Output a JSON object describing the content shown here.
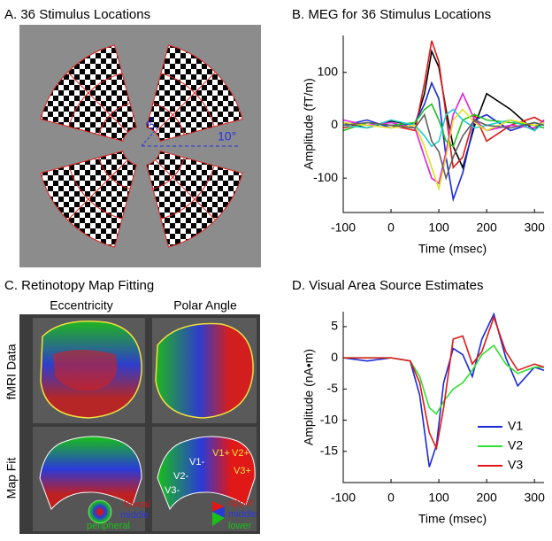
{
  "panel_a": {
    "title": "A. 36 Stimulus Locations",
    "labels": [
      "3°",
      "10°"
    ]
  },
  "panel_c": {
    "title": "C. Retinotopy Map Fitting",
    "columns": [
      "Eccentricity",
      "Polar Angle"
    ],
    "rows": [
      "fMRI Data",
      "Map Fit"
    ],
    "area_labels": [
      "V1-",
      "V2-",
      "V3-",
      "V1+",
      "V2+",
      "V3+"
    ],
    "eccentricity_legend": [
      "foveal",
      "middle",
      "peripheral"
    ],
    "polar_legend": [
      "upper",
      "middle",
      "lower"
    ]
  },
  "chart_data": [
    {
      "type": "line",
      "title": "B. MEG for 36 Stimulus Locations",
      "x_label": "Time (msec)",
      "y_label": "Amplitude (fT/m)",
      "x": [
        -100,
        -50,
        0,
        50,
        70,
        85,
        100,
        115,
        130,
        150,
        175,
        200,
        250,
        300,
        320
      ],
      "xlim": [
        -100,
        320
      ],
      "xticks": [
        -100,
        0,
        100,
        200,
        300
      ],
      "ylim": [
        -165,
        170
      ],
      "yticks": [
        -100,
        0,
        100
      ],
      "series": [
        {
          "color": "#000000",
          "values": [
            5,
            -5,
            8,
            0,
            60,
            140,
            110,
            30,
            -40,
            -80,
            0,
            60,
            30,
            -10,
            10
          ]
        },
        {
          "color": "#e01818",
          "values": [
            -5,
            5,
            0,
            -10,
            80,
            160,
            120,
            20,
            -80,
            -60,
            20,
            -30,
            0,
            15,
            5
          ]
        },
        {
          "color": "#1a2ad8",
          "values": [
            0,
            10,
            -5,
            5,
            40,
            80,
            50,
            -60,
            -140,
            -90,
            10,
            20,
            -10,
            5,
            0
          ]
        },
        {
          "color": "#e020e0",
          "values": [
            10,
            0,
            5,
            -5,
            -60,
            -100,
            -110,
            -50,
            20,
            60,
            10,
            -10,
            0,
            -5,
            10
          ]
        },
        {
          "color": "#20c020",
          "values": [
            -10,
            5,
            0,
            5,
            30,
            40,
            10,
            -30,
            -40,
            10,
            20,
            10,
            5,
            0,
            -5
          ]
        },
        {
          "color": "#20d0d0",
          "values": [
            0,
            -5,
            10,
            0,
            -20,
            -40,
            -30,
            20,
            30,
            10,
            -5,
            0,
            10,
            -10,
            5
          ]
        },
        {
          "color": "#e0e020",
          "values": [
            5,
            0,
            -5,
            0,
            -40,
            -80,
            -120,
            -60,
            10,
            30,
            5,
            -10,
            10,
            0,
            5
          ]
        },
        {
          "color": "#606060",
          "values": [
            0,
            5,
            0,
            -5,
            20,
            -30,
            -50,
            -100,
            -60,
            -20,
            10,
            0,
            -5,
            5,
            0
          ]
        }
      ]
    },
    {
      "type": "line",
      "title": "D. Visual Area Source Estimates",
      "x_label": "Time (msec)",
      "y_label": "Amplitude (nA•m)",
      "x": [
        -100,
        -50,
        0,
        40,
        60,
        80,
        95,
        110,
        130,
        150,
        170,
        190,
        215,
        240,
        265,
        300,
        320
      ],
      "xlim": [
        -100,
        320
      ],
      "xticks": [
        -100,
        0,
        100,
        200,
        300
      ],
      "ylim": [
        -20,
        7.4
      ],
      "yticks": [
        -15,
        -10,
        -5,
        0,
        5
      ],
      "legend": "lower right",
      "series": [
        {
          "name": "V1",
          "color": "#1a2ad8",
          "values": [
            0,
            -0.5,
            0,
            -0.5,
            -6,
            -17.5,
            -14,
            -4,
            1.5,
            0.5,
            -3,
            3,
            7,
            0,
            -4.5,
            -1.5,
            -2
          ]
        },
        {
          "name": "V2",
          "color": "#30e030",
          "values": [
            0,
            0,
            0,
            -0.5,
            -3,
            -8,
            -9,
            -7,
            -5,
            -4,
            -2,
            0.5,
            2,
            -1,
            -2.5,
            -1.5,
            -1.5
          ]
        },
        {
          "name": "V3",
          "color": "#e01818",
          "values": [
            0,
            0,
            0,
            -0.5,
            -4,
            -12,
            -14.5,
            -8,
            3,
            3.5,
            -1,
            1,
            6.5,
            1,
            -2,
            -1,
            -1.5
          ]
        }
      ]
    }
  ]
}
